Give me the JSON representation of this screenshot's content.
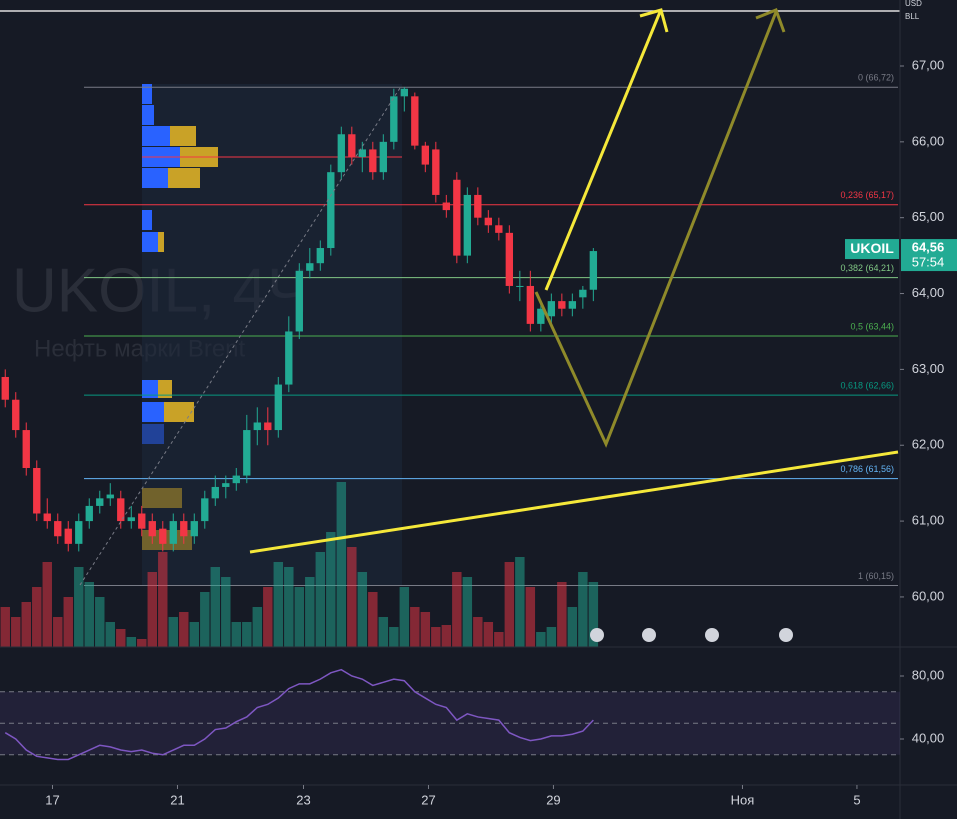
{
  "chart_data": {
    "type": "candlestick",
    "symbol_label": "UKOIL",
    "last_price": {
      "value": 64.56,
      "label": "64,56"
    },
    "countdown": "57:54",
    "watermark_title": "UKOIL, 4Ч",
    "watermark_subtitle": "Нефть марки Brent",
    "top_labels": [
      "USD",
      "BLL"
    ],
    "ylim": [
      59.34,
      67.87
    ],
    "yticks": [
      {
        "value": 67,
        "label": "67,00"
      },
      {
        "value": 66,
        "label": "66,00"
      },
      {
        "value": 65,
        "label": "65,00"
      },
      {
        "value": 64,
        "label": "64,00"
      },
      {
        "value": 63,
        "label": "63,00"
      },
      {
        "value": 62,
        "label": "62,00"
      },
      {
        "value": 61,
        "label": "61,00"
      },
      {
        "value": 60,
        "label": "60,00"
      }
    ],
    "xlim": [
      0,
      85.7
    ],
    "xticks": [
      {
        "value": 5.0,
        "label": "17"
      },
      {
        "value": 16.9,
        "label": "21"
      },
      {
        "value": 28.9,
        "label": "23"
      },
      {
        "value": 40.8,
        "label": "27"
      },
      {
        "value": 52.7,
        "label": "29"
      },
      {
        "value": 70.7,
        "label": "Ноя"
      },
      {
        "value": 81.6,
        "label": "5"
      }
    ],
    "up_color": "#22ab94",
    "down_color": "#f23645",
    "open": [
      62.9,
      62.6,
      62.2,
      61.7,
      61.1,
      61.0,
      60.9,
      60.7,
      61.0,
      61.2,
      61.3,
      61.3,
      61.0,
      61.1,
      61.0,
      60.9,
      60.7,
      61.0,
      60.8,
      61.0,
      61.3,
      61.45,
      61.5,
      61.6,
      62.2,
      62.3,
      62.2,
      62.8,
      63.5,
      64.3,
      64.4,
      64.6,
      65.6,
      66.1,
      65.8,
      65.9,
      65.6,
      66.0,
      66.6,
      66.6,
      65.95,
      65.9,
      65.2,
      65.5,
      64.5,
      65.3,
      65.0,
      64.9,
      64.8,
      64.1,
      64.1,
      63.6,
      63.7,
      63.9,
      63.8,
      63.95,
      64.05
    ],
    "high": [
      63.0,
      62.7,
      62.3,
      61.8,
      61.3,
      61.1,
      61.0,
      61.1,
      61.3,
      61.4,
      61.5,
      61.4,
      61.2,
      61.2,
      61.1,
      61.0,
      61.1,
      61.1,
      61.1,
      61.4,
      61.6,
      61.6,
      61.7,
      62.4,
      62.5,
      62.5,
      62.9,
      63.7,
      64.4,
      64.6,
      64.7,
      65.7,
      66.2,
      66.2,
      66.0,
      66.0,
      66.1,
      66.7,
      66.72,
      66.65,
      66.0,
      66.0,
      65.3,
      65.6,
      65.4,
      65.4,
      65.1,
      65.0,
      64.9,
      64.3,
      64.3,
      63.9,
      64.0,
      64.0,
      64.0,
      64.1,
      64.6
    ],
    "low": [
      62.5,
      62.1,
      61.6,
      61.0,
      60.9,
      60.7,
      60.6,
      60.6,
      60.9,
      61.1,
      61.2,
      60.9,
      60.9,
      60.8,
      60.7,
      60.6,
      60.6,
      60.7,
      60.7,
      60.9,
      61.2,
      61.3,
      61.4,
      61.5,
      62.0,
      62.0,
      62.1,
      62.7,
      63.4,
      64.2,
      64.3,
      64.5,
      65.5,
      65.7,
      65.6,
      65.5,
      65.5,
      65.9,
      66.4,
      65.9,
      65.6,
      65.2,
      65.0,
      64.4,
      64.4,
      64.9,
      64.8,
      64.7,
      64.0,
      63.9,
      63.5,
      63.5,
      63.6,
      63.7,
      63.7,
      63.8,
      63.9
    ],
    "close": [
      62.6,
      62.2,
      61.7,
      61.1,
      61.0,
      60.8,
      60.7,
      61.0,
      61.2,
      61.3,
      61.35,
      61.0,
      61.05,
      60.9,
      60.8,
      60.7,
      61.0,
      60.8,
      61.0,
      61.3,
      61.45,
      61.5,
      61.6,
      62.2,
      62.3,
      62.2,
      62.8,
      63.5,
      64.3,
      64.4,
      64.6,
      65.6,
      66.1,
      65.8,
      65.9,
      65.6,
      66.0,
      66.6,
      66.7,
      65.95,
      65.7,
      65.3,
      65.1,
      64.5,
      65.3,
      65.0,
      64.9,
      64.8,
      64.1,
      64.1,
      63.6,
      63.8,
      63.9,
      63.8,
      63.9,
      64.05,
      64.56
    ],
    "volume": [
      40,
      30,
      45,
      60,
      85,
      30,
      50,
      80,
      65,
      50,
      25,
      18,
      10,
      8,
      75,
      95,
      30,
      35,
      25,
      55,
      80,
      70,
      25,
      25,
      40,
      60,
      85,
      80,
      60,
      70,
      95,
      115,
      165,
      100,
      75,
      55,
      30,
      20,
      60,
      40,
      35,
      20,
      22,
      75,
      70,
      30,
      25,
      15,
      85,
      90,
      60,
      15,
      20,
      65,
      40,
      75,
      65
    ],
    "rsi": {
      "ylim": [
        10.8,
        96.5
      ],
      "yticks": [
        {
          "value": 80,
          "label": "80,00"
        },
        {
          "value": 40,
          "label": "40,00"
        }
      ],
      "bands": [
        70,
        50,
        30
      ],
      "color": "#7e57c2",
      "values": [
        44,
        40,
        33,
        29,
        28,
        27,
        27,
        30,
        33,
        36,
        35,
        33,
        32,
        33,
        31,
        30,
        33,
        36,
        36,
        40,
        46,
        47,
        51,
        54,
        60,
        62,
        66,
        72,
        75,
        75,
        78,
        82,
        84,
        80,
        78,
        74,
        76,
        78,
        77,
        70,
        66,
        62,
        60,
        52,
        56,
        54,
        53,
        52,
        44,
        41,
        39,
        40,
        42,
        42,
        43,
        45,
        52
      ]
    },
    "fib_levels": [
      {
        "label": "0 (66,72)",
        "price": 66.72,
        "color": "#787b86"
      },
      {
        "label": "0,236 (65,17)",
        "price": 65.17,
        "color": "#f23645"
      },
      {
        "label": "0,382 (64,21)",
        "price": 64.21,
        "color": "#81c784"
      },
      {
        "label": "0,5 (63,44)",
        "price": 63.44,
        "color": "#4caf50"
      },
      {
        "label": "0,618 (62,66)",
        "price": 62.66,
        "color": "#089981"
      },
      {
        "label": "0,786 (61,56)",
        "price": 61.56,
        "color": "#64b5f6"
      },
      {
        "label": "1 (60,15)",
        "price": 60.15,
        "color": "#787b86"
      }
    ]
  }
}
